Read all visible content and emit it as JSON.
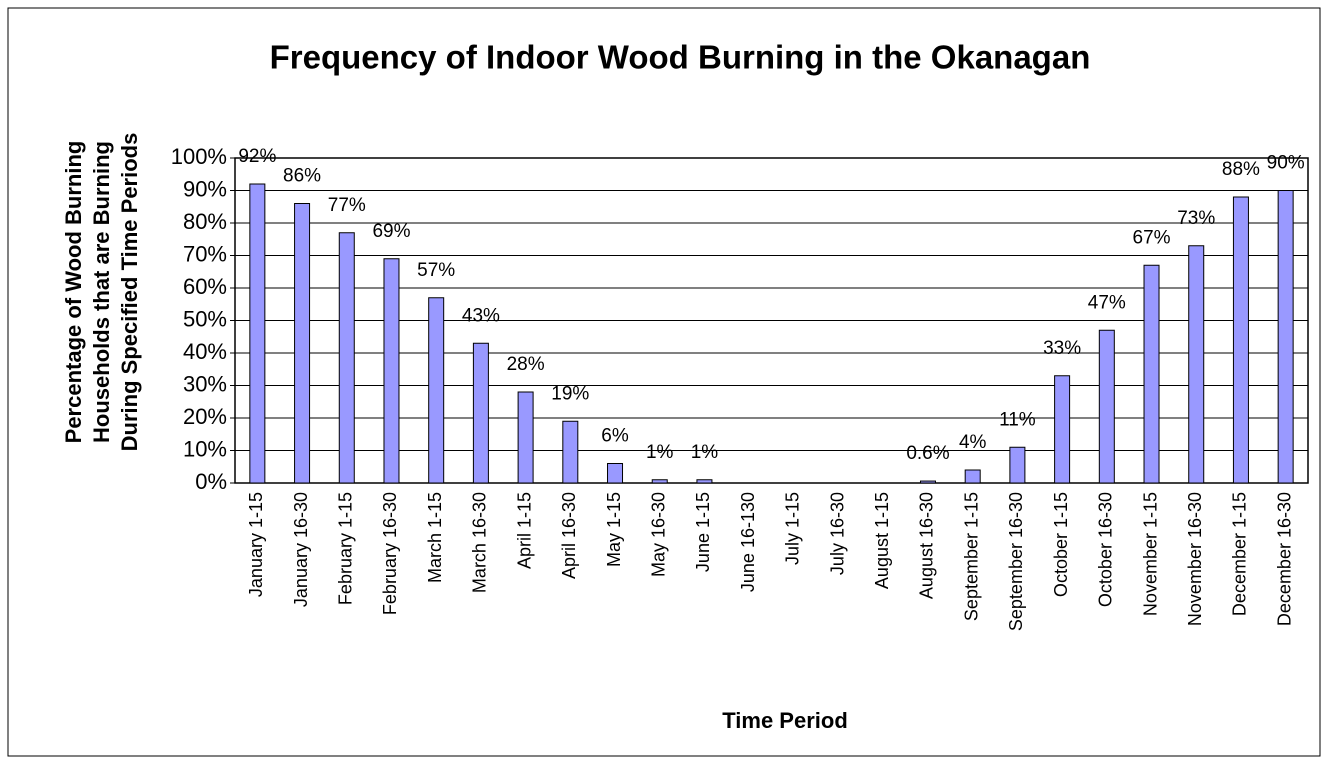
{
  "chart_data": {
    "type": "bar",
    "title": "Frequency of Indoor Wood Burning in the Okanagan",
    "y_label": [
      "Percentage of Wood Burning",
      "Households that are Burning",
      "During Specified Time Periods"
    ],
    "x_label": "Time Period",
    "categories": [
      "January 1-15",
      "January 16-30",
      "February 1-15",
      "February 16-30",
      "March 1-15",
      "March 16-30",
      "April 1-15",
      "April 16-30",
      "May 1-15",
      "May 16-30",
      "June 1-15",
      "June 16-130",
      "July 1-15",
      "July 16-30",
      "August 1-15",
      "August 16-30",
      "September 1-15",
      "September 16-30",
      "October 1-15",
      "October 16-30",
      "November 1-15",
      "November 16-30",
      "December 1-15",
      "December 16-30"
    ],
    "values": [
      92,
      86,
      77,
      69,
      57,
      43,
      28,
      19,
      6,
      1,
      1,
      0,
      0,
      0,
      0,
      0.6,
      4,
      11,
      33,
      47,
      67,
      73,
      88,
      90
    ],
    "value_labels": [
      "92%",
      "86%",
      "77%",
      "69%",
      "57%",
      "43%",
      "28%",
      "19%",
      "6%",
      "1%",
      "1%",
      null,
      null,
      null,
      null,
      "0.6%",
      "4%",
      "11%",
      "33%",
      "47%",
      "67%",
      "73%",
      "88%",
      "90%"
    ],
    "color": "#9999ff",
    "ylim": [
      0,
      100
    ],
    "yticks": [
      {
        "value": 0,
        "label": "0%"
      },
      {
        "value": 10,
        "label": "10%"
      },
      {
        "value": 20,
        "label": "20%"
      },
      {
        "value": 30,
        "label": "30%"
      },
      {
        "value": 40,
        "label": "40%"
      },
      {
        "value": 50,
        "label": "50%"
      },
      {
        "value": 60,
        "label": "60%"
      },
      {
        "value": 70,
        "label": "70%"
      },
      {
        "value": 80,
        "label": "80%"
      },
      {
        "value": 90,
        "label": "90%"
      },
      {
        "value": 100,
        "label": "100%"
      }
    ],
    "grid": true
  }
}
